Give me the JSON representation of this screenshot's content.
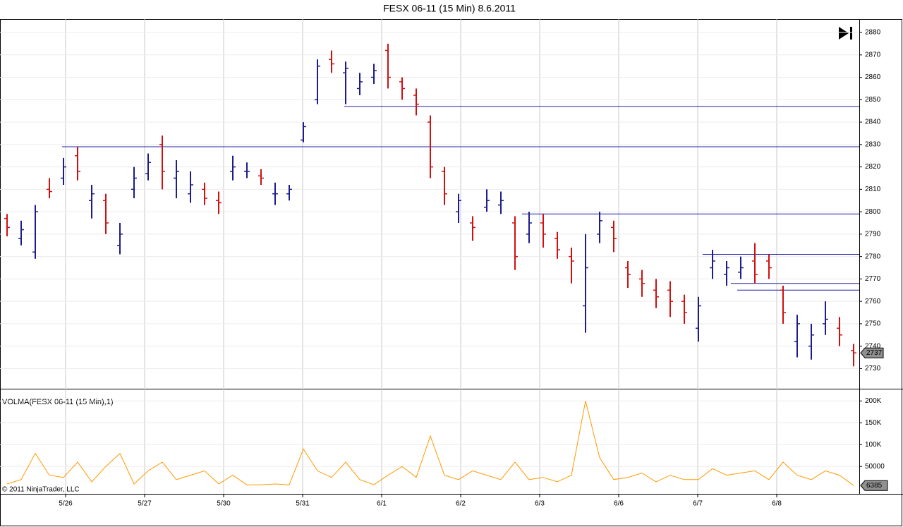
{
  "chart_data": [
    {
      "type": "ohlc",
      "title": "FESX 06-11 (15 Min)  8.6.2011",
      "x": [
        0,
        1,
        2,
        3,
        4,
        5,
        6,
        7,
        8,
        9,
        10,
        11,
        12,
        13,
        14,
        15,
        16,
        17,
        18,
        19,
        20,
        21,
        22,
        23,
        24,
        25,
        26,
        27,
        28,
        29,
        30,
        31,
        32,
        33,
        34,
        35,
        36,
        37,
        38,
        39,
        40,
        41,
        42,
        43,
        44,
        45,
        46,
        47,
        48,
        49,
        50,
        51,
        52,
        53,
        54,
        55,
        56,
        57,
        58,
        59,
        60
      ],
      "open": [
        2797,
        2788,
        2782,
        2810,
        2815,
        2825,
        2805,
        2805,
        2785,
        2810,
        2817,
        2830,
        2815,
        2808,
        2810,
        2805,
        2818,
        2818,
        2816,
        2808,
        2808,
        2832,
        2850,
        2868,
        2862,
        2855,
        2860,
        2872,
        2858,
        2852,
        2840,
        2818,
        2800,
        2795,
        2802,
        2803,
        2795,
        2790,
        2795,
        2788,
        2780,
        2758,
        2790,
        2793,
        2775,
        2770,
        2765,
        2765,
        2760,
        2748,
        2775,
        2772,
        2773,
        2778,
        2778,
        2765,
        2742,
        2740,
        2750,
        2748,
        2738
      ],
      "high": [
        2799,
        2796,
        2803,
        2815,
        2824,
        2829,
        2812,
        2808,
        2795,
        2820,
        2826,
        2834,
        2823,
        2818,
        2813,
        2809,
        2825,
        2822,
        2819,
        2813,
        2812,
        2840,
        2868,
        2872,
        2867,
        2862,
        2866,
        2875,
        2860,
        2855,
        2843,
        2820,
        2808,
        2798,
        2810,
        2809,
        2798,
        2800,
        2799,
        2791,
        2784,
        2790,
        2800,
        2796,
        2778,
        2774,
        2770,
        2769,
        2763,
        2762,
        2783,
        2778,
        2780,
        2786,
        2781,
        2767,
        2754,
        2750,
        2760,
        2753,
        2741
      ],
      "low": [
        2789,
        2785,
        2779,
        2806,
        2812,
        2814,
        2797,
        2790,
        2781,
        2806,
        2814,
        2810,
        2806,
        2804,
        2803,
        2799,
        2814,
        2815,
        2812,
        2803,
        2805,
        2831,
        2848,
        2862,
        2848,
        2852,
        2857,
        2855,
        2850,
        2843,
        2815,
        2803,
        2795,
        2787,
        2800,
        2799,
        2774,
        2786,
        2784,
        2779,
        2768,
        2746,
        2786,
        2782,
        2766,
        2762,
        2757,
        2753,
        2750,
        2742,
        2770,
        2767,
        2770,
        2768,
        2770,
        2750,
        2735,
        2734,
        2745,
        2740,
        2731
      ],
      "close": [
        2793,
        2792,
        2800,
        2809,
        2820,
        2818,
        2808,
        2795,
        2790,
        2815,
        2822,
        2818,
        2818,
        2812,
        2806,
        2804,
        2820,
        2818,
        2815,
        2808,
        2810,
        2838,
        2865,
        2866,
        2864,
        2858,
        2863,
        2860,
        2855,
        2848,
        2820,
        2808,
        2805,
        2793,
        2805,
        2805,
        2780,
        2795,
        2790,
        2783,
        2778,
        2775,
        2796,
        2788,
        2772,
        2768,
        2762,
        2760,
        2755,
        2758,
        2778,
        2775,
        2775,
        2772,
        2775,
        2755,
        2750,
        2745,
        2752,
        2745,
        2737
      ],
      "up_color": "#1c1c8c",
      "down_color": "#d01010",
      "xlim": [
        -0.5,
        60.4
      ],
      "ylim": [
        2721,
        2886
      ],
      "yticks": [
        2730,
        2740,
        2750,
        2760,
        2770,
        2780,
        2790,
        2800,
        2810,
        2820,
        2830,
        2840,
        2850,
        2860,
        2870,
        2880
      ],
      "grid": true,
      "lines": [
        {
          "y": 2847,
          "x": 23.9
        },
        {
          "y": 2829,
          "x": 3.9
        },
        {
          "y": 2799,
          "x": 36.5
        },
        {
          "y": 2781,
          "x": 49.3
        },
        {
          "y": 2768,
          "x": 51.3
        },
        {
          "y": 2765,
          "x": 51.75
        }
      ],
      "line_color": "#2020a0"
    },
    {
      "type": "line",
      "label": "VOLMA(FESX 06-11 (15 Min),1)",
      "copyright": "© 2011 NinjaTrader, LLC",
      "x": [
        0,
        1,
        2,
        3,
        4,
        5,
        6,
        7,
        8,
        9,
        10,
        11,
        12,
        13,
        14,
        15,
        16,
        17,
        18,
        19,
        20,
        21,
        22,
        23,
        24,
        25,
        26,
        27,
        28,
        29,
        30,
        31,
        32,
        33,
        34,
        35,
        36,
        37,
        38,
        39,
        40,
        41,
        42,
        43,
        44,
        45,
        46,
        47,
        48,
        49,
        50,
        51,
        52,
        53,
        54,
        55,
        56,
        57,
        58,
        59,
        60
      ],
      "values": [
        10000,
        20000,
        80000,
        30000,
        25000,
        60000,
        15000,
        50000,
        80000,
        10000,
        40000,
        60000,
        20000,
        30000,
        40000,
        10000,
        30000,
        8000,
        8000,
        10000,
        8000,
        90000,
        40000,
        25000,
        60000,
        20000,
        8000,
        30000,
        50000,
        25000,
        120000,
        30000,
        20000,
        40000,
        30000,
        20000,
        60000,
        20000,
        25000,
        15000,
        30000,
        200000,
        70000,
        20000,
        25000,
        35000,
        15000,
        30000,
        20000,
        20000,
        45000,
        30000,
        35000,
        40000,
        20000,
        60000,
        30000,
        20000,
        40000,
        30000,
        6385
      ],
      "color": "#ff9900",
      "xlim": [
        -0.5,
        60.4
      ],
      "ylim": [
        -12600,
        228000
      ],
      "yticks": [
        50000,
        {
          "value": 100000,
          "label": "100K"
        },
        {
          "value": 150000,
          "label": "150K"
        },
        {
          "value": 200000,
          "label": "200K"
        }
      ],
      "xticks": [
        {
          "value": 4.15,
          "label": "5/26"
        },
        {
          "value": 9.75,
          "label": "5/27"
        },
        {
          "value": 15.35,
          "label": "5/30"
        },
        {
          "value": 20.95,
          "label": "5/31"
        },
        {
          "value": 26.55,
          "label": "6/1"
        },
        {
          "value": 32.15,
          "label": "6/2"
        },
        {
          "value": 37.75,
          "label": "6/3"
        },
        {
          "value": 43.35,
          "label": "6/6"
        },
        {
          "value": 48.95,
          "label": "6/7"
        },
        {
          "value": 54.55,
          "label": "6/8"
        }
      ],
      "grid": true
    }
  ]
}
